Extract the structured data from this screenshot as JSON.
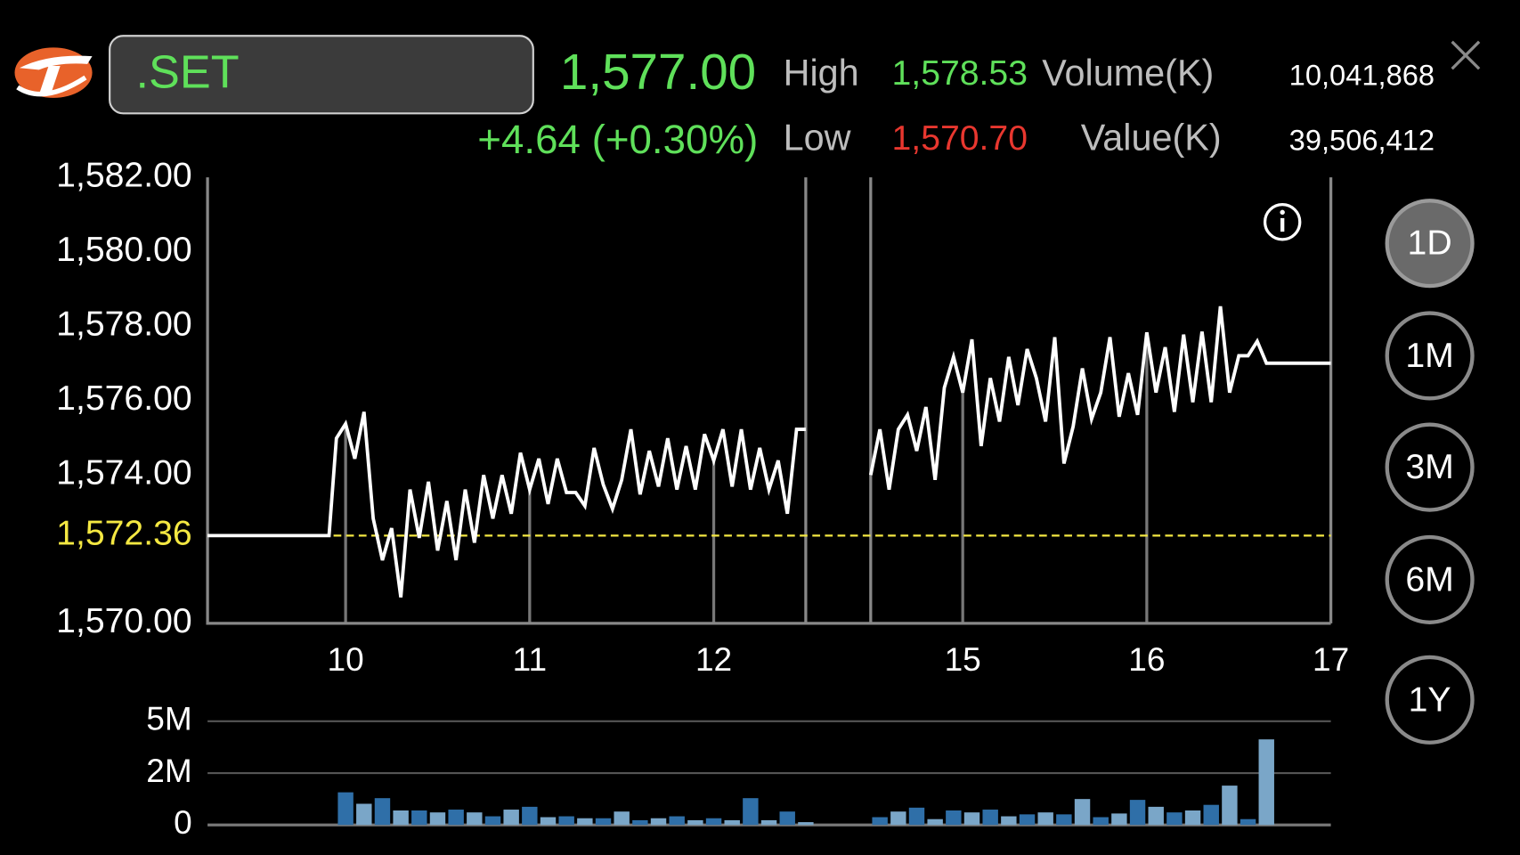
{
  "header": {
    "symbol": ".SET",
    "last": "1,577.00",
    "change": "+4.64 (+0.30%)",
    "high_label": "High",
    "high": "1,578.53",
    "low_label": "Low",
    "low": "1,570.70",
    "volume_label": "Volume(K)",
    "volume": "10,041,868",
    "value_label": "Value(K)",
    "value": "39,506,412"
  },
  "periods": [
    "1D",
    "1M",
    "3M",
    "6M",
    "1Y"
  ],
  "selected_period": 0,
  "chart_data": [
    {
      "type": "line",
      "color": "#ffffff",
      "x": [
        9.25,
        9.91,
        9.95,
        10,
        10.05,
        10.1,
        10.15,
        10.2,
        10.25,
        10.3,
        10.35,
        10.4,
        10.45,
        10.5,
        10.55,
        10.6,
        10.65,
        10.7,
        10.75,
        10.8,
        10.85,
        10.9,
        10.95,
        11,
        11.05,
        11.1,
        11.15,
        11.2,
        11.25,
        11.3,
        11.35,
        11.4,
        11.45,
        11.5,
        11.55,
        11.6,
        11.65,
        11.7,
        11.75,
        11.8,
        11.85,
        11.9,
        11.95,
        12,
        12.05,
        12.1,
        12.15,
        12.2,
        12.25,
        12.3,
        12.35,
        12.4,
        12.45,
        12.5,
        null,
        14.5,
        14.55,
        14.6,
        14.65,
        14.7,
        14.75,
        14.8,
        14.85,
        14.9,
        14.95,
        15,
        15.05,
        15.1,
        15.15,
        15.2,
        15.25,
        15.3,
        15.35,
        15.4,
        15.45,
        15.5,
        15.55,
        15.6,
        15.65,
        15.7,
        15.75,
        15.8,
        15.85,
        15.9,
        15.95,
        16,
        16.05,
        16.1,
        16.15,
        16.2,
        16.25,
        16.3,
        16.35,
        16.4,
        16.45,
        16.5,
        16.55,
        16.6,
        16.65,
        17
      ],
      "values": [
        1572.36,
        1572.36,
        1574.98,
        1575.37,
        1574.43,
        1575.69,
        1572.82,
        1571.7,
        1572.56,
        1570.7,
        1573.6,
        1572.3,
        1573.81,
        1571.96,
        1573.29,
        1571.7,
        1573.6,
        1572.17,
        1573.99,
        1572.82,
        1573.99,
        1572.95,
        1574.59,
        1573.6,
        1574.43,
        1573.21,
        1574.43,
        1573.52,
        1573.52,
        1573.16,
        1574.72,
        1573.73,
        1573.08,
        1573.86,
        1575.22,
        1573.47,
        1574.64,
        1573.68,
        1574.98,
        1573.6,
        1574.77,
        1573.6,
        1575.09,
        1574.38,
        1575.22,
        1573.68,
        1575.22,
        1573.6,
        1574.72,
        1573.6,
        1574.38,
        1572.95,
        1575.22,
        1575.22,
        null,
        1573.99,
        1575.22,
        1573.6,
        1575.22,
        1575.61,
        1574.64,
        1575.82,
        1573.86,
        1576.34,
        1577.17,
        1576.21,
        1577.64,
        1574.77,
        1576.6,
        1575.43,
        1577.17,
        1575.87,
        1577.38,
        1576.6,
        1575.43,
        1577.7,
        1574.3,
        1575.3,
        1576.86,
        1575.5,
        1576.21,
        1577.7,
        1575.56,
        1576.73,
        1575.61,
        1577.83,
        1576.21,
        1577.43,
        1575.69,
        1577.77,
        1575.95,
        1577.85,
        1575.95,
        1578.53,
        1576.21,
        1577.2,
        1577.2,
        1577.59,
        1577.0,
        1577.0
      ],
      "xlim": [
        9.25,
        17
      ],
      "sessions": [
        [
          9.25,
          12.5
        ],
        [
          14.5,
          17
        ]
      ],
      "xticks": [
        10,
        11,
        12,
        15,
        16,
        17
      ],
      "ylim": [
        1570,
        1582
      ],
      "yticks": [
        {
          "value": 1570,
          "label": "1,570.00"
        },
        {
          "value": 1574,
          "label": "1,574.00"
        },
        {
          "value": 1576,
          "label": "1,576.00"
        },
        {
          "value": 1578,
          "label": "1,578.00"
        },
        {
          "value": 1580,
          "label": "1,580.00"
        },
        {
          "value": 1582,
          "label": "1,582.00"
        }
      ],
      "reference_line": {
        "value": 1572.36,
        "label": "1,572.36",
        "color": "#f4e842"
      }
    },
    {
      "type": "bar",
      "colors": [
        "#2f6fa8",
        "#7aa6c8"
      ],
      "x": [
        10,
        10.1,
        10.2,
        10.3,
        10.4,
        10.5,
        10.6,
        10.7,
        10.8,
        10.9,
        11,
        11.1,
        11.2,
        11.3,
        11.4,
        11.5,
        11.6,
        11.7,
        11.8,
        11.9,
        12,
        12.1,
        12.2,
        12.3,
        12.4,
        12.5,
        14.55,
        14.65,
        14.75,
        14.85,
        14.95,
        15.05,
        15.15,
        15.25,
        15.35,
        15.45,
        15.55,
        15.65,
        15.75,
        15.85,
        15.95,
        16.05,
        16.15,
        16.25,
        16.35,
        16.45,
        16.55,
        16.65
      ],
      "values": [
        1.51,
        0.98,
        1.24,
        0.67,
        0.67,
        0.58,
        0.71,
        0.58,
        0.4,
        0.71,
        0.84,
        0.36,
        0.4,
        0.31,
        0.31,
        0.62,
        0.22,
        0.31,
        0.4,
        0.22,
        0.31,
        0.22,
        1.24,
        0.22,
        0.62,
        0.13,
        0.36,
        0.62,
        0.8,
        0.27,
        0.67,
        0.58,
        0.71,
        0.4,
        0.49,
        0.58,
        0.49,
        1.2,
        0.36,
        0.53,
        1.16,
        0.84,
        0.58,
        0.67,
        0.93,
        1.82,
        0.27,
        3.96
      ],
      "xlim": [
        9.25,
        17
      ],
      "sessions": [
        [
          9.25,
          12.5
        ],
        [
          14.5,
          17
        ]
      ],
      "ylim": [
        0,
        4.8
      ],
      "yticks": [
        0,
        {
          "value": 2.4,
          "label": "2M"
        },
        {
          "value": 4.8,
          "label": "5M"
        }
      ]
    }
  ]
}
